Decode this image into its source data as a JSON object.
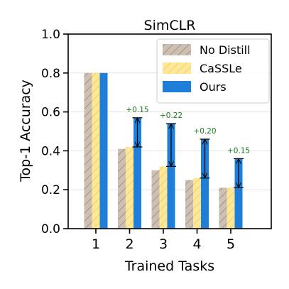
{
  "chart_data": {
    "type": "bar",
    "title": "SimCLR",
    "xlabel": "Trained Tasks",
    "ylabel": "Top-1 Accuracy",
    "categories": [
      "1",
      "2",
      "3",
      "4",
      "5"
    ],
    "ylim": [
      0.0,
      1.0
    ],
    "yticks": [
      "0.0",
      "0.2",
      "0.4",
      "0.6",
      "0.8",
      "1.0"
    ],
    "grid": true,
    "legend_position": "top-right",
    "series": [
      {
        "name": "No Distill",
        "values": [
          0.8,
          0.41,
          0.3,
          0.25,
          0.21
        ],
        "color": "#c8b8a8",
        "hatch": "diagonal"
      },
      {
        "name": "CaSSLe",
        "values": [
          0.8,
          0.42,
          0.32,
          0.26,
          0.21
        ],
        "color": "#fde89a",
        "hatch": "diagonal"
      },
      {
        "name": "Ours",
        "values": [
          0.8,
          0.57,
          0.54,
          0.46,
          0.36
        ],
        "color": "#1f7fd8",
        "hatch": "none"
      }
    ],
    "annotations": [
      {
        "category": "2",
        "text": "+0.15",
        "from": 0.42,
        "to": 0.57
      },
      {
        "category": "3",
        "text": "+0.22",
        "from": 0.32,
        "to": 0.54
      },
      {
        "category": "4",
        "text": "+0.20",
        "from": 0.26,
        "to": 0.46
      },
      {
        "category": "5",
        "text": "+0.15",
        "from": 0.21,
        "to": 0.36
      }
    ],
    "annotation_color": "#1a7a1a"
  }
}
